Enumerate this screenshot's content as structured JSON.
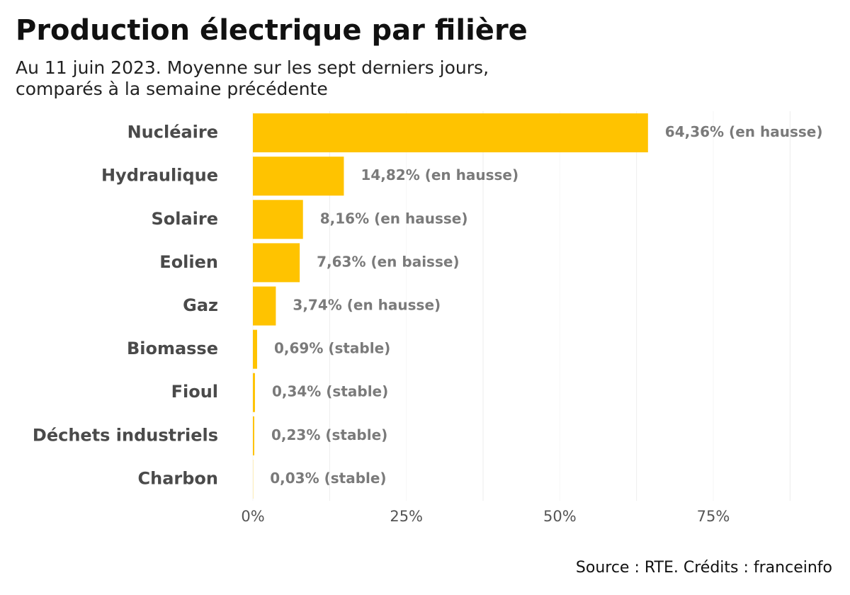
{
  "chart_data": {
    "type": "hbar",
    "title": "Production électrique par filière",
    "subtitle": [
      "Au 11 juin 2023. Moyenne sur les sept derniers jours,",
      "comparés à la semaine précédente"
    ],
    "categories": [
      "Nucléaire",
      "Hydraulique",
      "Solaire",
      "Eolien",
      "Gaz",
      "Biomasse",
      "Fioul",
      "Déchets industriels",
      "Charbon"
    ],
    "values": [
      64.36,
      14.82,
      8.16,
      7.63,
      3.74,
      0.69,
      0.34,
      0.23,
      0.03
    ],
    "value_labels": [
      "64,36% (en hausse)",
      "14,82% (en hausse)",
      "8,16% (en hausse)",
      "7,63% (en baisse)",
      "3,74% (en hausse)",
      "0,69% (stable)",
      "0,34% (stable)",
      "0,23% (stable)",
      "0,03% (stable)"
    ],
    "color": "#ffc300",
    "xlim": [
      0,
      90
    ],
    "xticks": [
      {
        "value": 0,
        "label": "0%"
      },
      {
        "value": 25,
        "label": "25%"
      },
      {
        "value": 50,
        "label": "50%"
      },
      {
        "value": 75,
        "label": "75%"
      }
    ],
    "x_minor_gridlines": [
      12.5,
      37.5,
      62.5,
      87.5
    ],
    "source": "Source : RTE. Crédits : franceinfo"
  }
}
